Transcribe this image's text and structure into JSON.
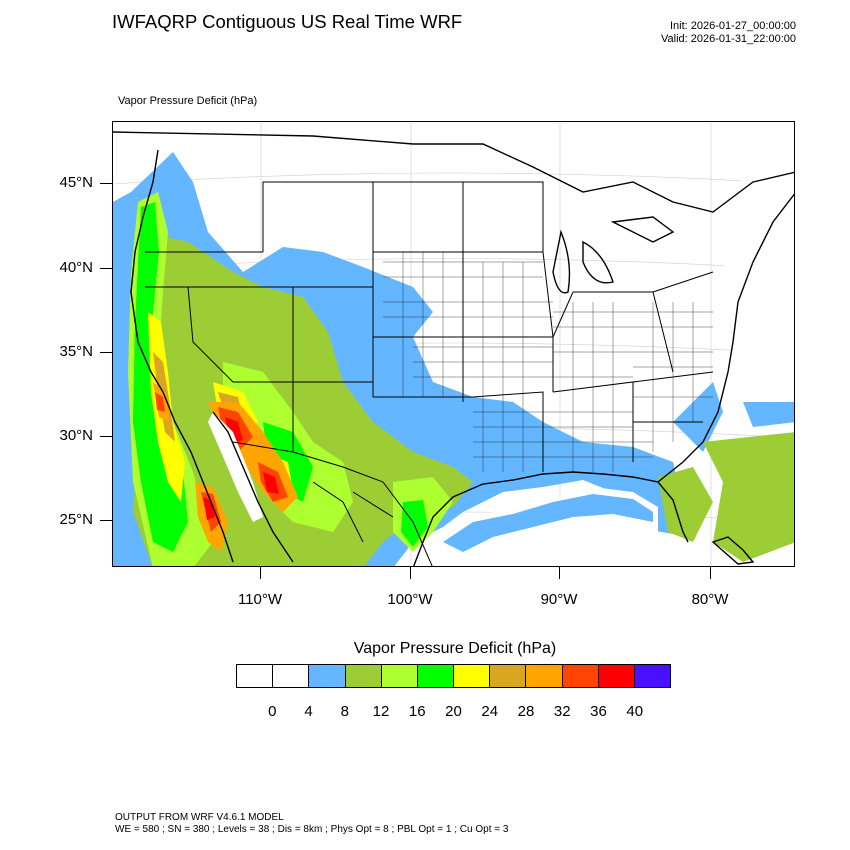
{
  "title": "IWFAQRP Contiguous US Real Time WRF",
  "init": "Init: 2026-01-27_00:00:00",
  "valid": "Valid: 2026-01-31_22:00:00",
  "field_label": "Vapor Pressure Deficit   (hPa)",
  "map": {
    "lat_labels": [
      "45°N",
      "40°N",
      "35°N",
      "30°N",
      "25°N"
    ],
    "lon_labels": [
      "110°W",
      "100°W",
      "90°W",
      "80°W"
    ]
  },
  "colorbar": {
    "title": "Vapor Pressure Deficit  (hPa)",
    "colors": [
      "#ffffff",
      "#ffffff",
      "#63b6ff",
      "#9ccd35",
      "#adff2f",
      "#00ff00",
      "#ffff00",
      "#daa520",
      "#ffa500",
      "#ff4500",
      "#ff0000",
      "#4b0fff"
    ],
    "labels": [
      "0",
      "4",
      "8",
      "12",
      "16",
      "20",
      "24",
      "28",
      "32",
      "36",
      "40"
    ]
  },
  "footer": {
    "line1": "OUTPUT FROM WRF V4.6.1 MODEL",
    "line2": "WE = 580 ; SN = 380 ; Levels = 38 ; Dis = 8km ; Phys Opt = 8 ; PBL Opt = 1 ; Cu Opt = 3"
  }
}
